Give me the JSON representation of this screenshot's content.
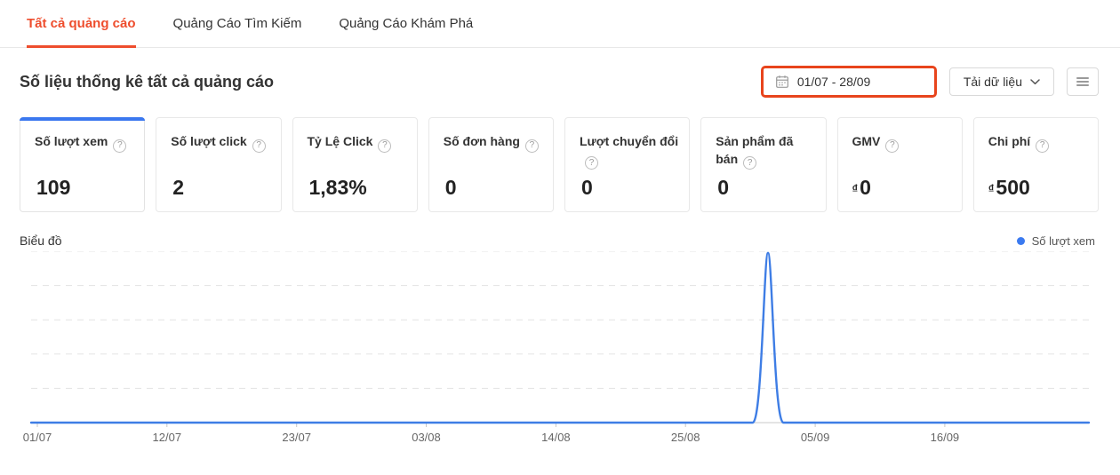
{
  "tabs": [
    {
      "label": "Tất cả quảng cáo",
      "active": true
    },
    {
      "label": "Quảng Cáo Tìm Kiếm",
      "active": false
    },
    {
      "label": "Quảng Cáo Khám Phá",
      "active": false
    }
  ],
  "header": {
    "title": "Số liệu thống kê tất cả quảng cáo",
    "date_range": "01/07 - 28/09",
    "download_label": "Tải dữ liệu"
  },
  "metrics": {
    "help_icon": "?",
    "cards": [
      {
        "label": "Số lượt xem",
        "value": "109",
        "prefix": "",
        "selected": true
      },
      {
        "label": "Số lượt click",
        "value": "2",
        "prefix": "",
        "selected": false
      },
      {
        "label": "Tỷ Lệ Click",
        "value": "1,83%",
        "prefix": "",
        "selected": false
      },
      {
        "label": "Số đơn hàng",
        "value": "0",
        "prefix": "",
        "selected": false
      },
      {
        "label": "Lượt chuyển đổi",
        "value": "0",
        "prefix": "",
        "selected": false
      },
      {
        "label": "Sản phẩm đã bán",
        "value": "0",
        "prefix": "",
        "selected": false
      },
      {
        "label": "GMV",
        "value": "0",
        "prefix": "₫",
        "selected": false
      },
      {
        "label": "Chi phí",
        "value": "500",
        "prefix": "₫",
        "selected": false
      }
    ]
  },
  "chart": {
    "section_label": "Biểu đồ"
  },
  "colors": {
    "brand_orange": "#ee4d2d",
    "date_highlight_border": "#e8441c",
    "selected_card_top": "#3b78ef",
    "chart_line": "#3e7de5",
    "legend_dot": "#3b7af0",
    "gridline": "#e3e3e3",
    "axis": "#c8c8c8"
  },
  "chart_data": {
    "type": "line",
    "title": "Biểu đồ",
    "legend": [
      "Số lượt xem"
    ],
    "legend_position": "top-right",
    "x_range": [
      "01/07",
      "28/09"
    ],
    "x_total_days": 89,
    "x_tick_labels": [
      "01/07",
      "12/07",
      "23/07",
      "03/08",
      "14/08",
      "25/08",
      "05/09",
      "16/09"
    ],
    "tick_interval_days": 11,
    "xlabel": "",
    "ylabel": "",
    "ylim": [
      0,
      110
    ],
    "gridline_values": [
      22,
      44,
      66,
      88,
      110
    ],
    "grid": "horizontal-dashed",
    "y_axis_labels_visible": false,
    "series": [
      {
        "name": "Số lượt xem",
        "color": "#3e7de5",
        "default_value": 0,
        "data": [
          {
            "date": "01/09",
            "day": 62,
            "value": 109
          }
        ]
      }
    ]
  }
}
